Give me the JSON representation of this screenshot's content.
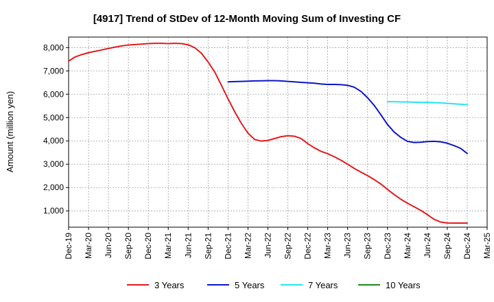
{
  "chart_data": {
    "type": "line",
    "title": "[4917]  Trend of StDev of 12-Month Moving Sum of Investing CF",
    "xlabel": "",
    "ylabel": "Amount (million yen)",
    "ylim": [
      300,
      8450
    ],
    "y_ticks": [
      1000,
      2000,
      3000,
      4000,
      5000,
      6000,
      7000,
      8000
    ],
    "y_tick_labels": [
      "1,000",
      "2,000",
      "3,000",
      "4,000",
      "5,000",
      "6,000",
      "7,000",
      "8,000"
    ],
    "x_range": [
      "2019-12",
      "2025-03"
    ],
    "x_tick_labels": [
      "Dec-19",
      "Mar-20",
      "Jun-20",
      "Sep-20",
      "Dec-20",
      "Mar-21",
      "Jun-21",
      "Sep-21",
      "Dec-21",
      "Mar-22",
      "Jun-22",
      "Sep-22",
      "Dec-22",
      "Mar-23",
      "Jun-23",
      "Sep-23",
      "Dec-23",
      "Mar-24",
      "Jun-24",
      "Sep-24",
      "Dec-24",
      "Mar-25"
    ],
    "grid": "dashed",
    "legend_position": "bottom",
    "series": [
      {
        "name": "3 Years",
        "color": "#e31a1c",
        "points": [
          [
            "2019-12",
            7420
          ],
          [
            "2020-01",
            7600
          ],
          [
            "2020-02",
            7700
          ],
          [
            "2020-03",
            7780
          ],
          [
            "2020-04",
            7840
          ],
          [
            "2020-05",
            7900
          ],
          [
            "2020-06",
            7960
          ],
          [
            "2020-07",
            8020
          ],
          [
            "2020-08",
            8070
          ],
          [
            "2020-09",
            8110
          ],
          [
            "2020-10",
            8130
          ],
          [
            "2020-11",
            8150
          ],
          [
            "2020-12",
            8170
          ],
          [
            "2021-01",
            8180
          ],
          [
            "2021-02",
            8180
          ],
          [
            "2021-03",
            8170
          ],
          [
            "2021-04",
            8180
          ],
          [
            "2021-05",
            8170
          ],
          [
            "2021-06",
            8120
          ],
          [
            "2021-07",
            7990
          ],
          [
            "2021-08",
            7750
          ],
          [
            "2021-09",
            7380
          ],
          [
            "2021-10",
            6950
          ],
          [
            "2021-11",
            6380
          ],
          [
            "2021-12",
            5800
          ],
          [
            "2022-01",
            5250
          ],
          [
            "2022-02",
            4750
          ],
          [
            "2022-03",
            4330
          ],
          [
            "2022-04",
            4060
          ],
          [
            "2022-05",
            3990
          ],
          [
            "2022-06",
            4020
          ],
          [
            "2022-07",
            4100
          ],
          [
            "2022-08",
            4180
          ],
          [
            "2022-09",
            4220
          ],
          [
            "2022-10",
            4200
          ],
          [
            "2022-11",
            4100
          ],
          [
            "2022-12",
            3880
          ],
          [
            "2023-01",
            3700
          ],
          [
            "2023-02",
            3550
          ],
          [
            "2023-03",
            3450
          ],
          [
            "2023-04",
            3320
          ],
          [
            "2023-05",
            3170
          ],
          [
            "2023-06",
            3000
          ],
          [
            "2023-07",
            2820
          ],
          [
            "2023-08",
            2660
          ],
          [
            "2023-09",
            2510
          ],
          [
            "2023-10",
            2340
          ],
          [
            "2023-11",
            2150
          ],
          [
            "2023-12",
            1920
          ],
          [
            "2024-01",
            1700
          ],
          [
            "2024-02",
            1500
          ],
          [
            "2024-03",
            1330
          ],
          [
            "2024-04",
            1180
          ],
          [
            "2024-05",
            1020
          ],
          [
            "2024-06",
            840
          ],
          [
            "2024-07",
            640
          ],
          [
            "2024-08",
            520
          ],
          [
            "2024-09",
            480
          ],
          [
            "2024-10",
            475
          ],
          [
            "2024-11",
            475
          ],
          [
            "2024-12",
            478
          ]
        ]
      },
      {
        "name": "5 Years",
        "color": "#0b14c8",
        "points": [
          [
            "2021-12",
            6530
          ],
          [
            "2022-01",
            6540
          ],
          [
            "2022-02",
            6550
          ],
          [
            "2022-03",
            6560
          ],
          [
            "2022-04",
            6570
          ],
          [
            "2022-05",
            6575
          ],
          [
            "2022-06",
            6580
          ],
          [
            "2022-07",
            6580
          ],
          [
            "2022-08",
            6570
          ],
          [
            "2022-09",
            6550
          ],
          [
            "2022-10",
            6530
          ],
          [
            "2022-11",
            6510
          ],
          [
            "2022-12",
            6490
          ],
          [
            "2023-01",
            6470
          ],
          [
            "2023-02",
            6440
          ],
          [
            "2023-03",
            6420
          ],
          [
            "2023-04",
            6420
          ],
          [
            "2023-05",
            6410
          ],
          [
            "2023-06",
            6380
          ],
          [
            "2023-07",
            6300
          ],
          [
            "2023-08",
            6120
          ],
          [
            "2023-09",
            5850
          ],
          [
            "2023-10",
            5520
          ],
          [
            "2023-11",
            5120
          ],
          [
            "2023-12",
            4700
          ],
          [
            "2024-01",
            4380
          ],
          [
            "2024-02",
            4150
          ],
          [
            "2024-03",
            3980
          ],
          [
            "2024-04",
            3930
          ],
          [
            "2024-05",
            3940
          ],
          [
            "2024-06",
            3970
          ],
          [
            "2024-07",
            3980
          ],
          [
            "2024-08",
            3960
          ],
          [
            "2024-09",
            3900
          ],
          [
            "2024-10",
            3800
          ],
          [
            "2024-11",
            3680
          ],
          [
            "2024-12",
            3460
          ]
        ]
      },
      {
        "name": "7 Years",
        "color": "#22e5f0",
        "points": [
          [
            "2023-12",
            5680
          ],
          [
            "2024-01",
            5680
          ],
          [
            "2024-02",
            5670
          ],
          [
            "2024-03",
            5670
          ],
          [
            "2024-04",
            5660
          ],
          [
            "2024-05",
            5650
          ],
          [
            "2024-06",
            5650
          ],
          [
            "2024-07",
            5640
          ],
          [
            "2024-08",
            5630
          ],
          [
            "2024-09",
            5610
          ],
          [
            "2024-10",
            5590
          ],
          [
            "2024-11",
            5570
          ],
          [
            "2024-12",
            5550
          ]
        ]
      },
      {
        "name": "10 Years",
        "color": "#1a8a1a",
        "points": []
      }
    ]
  }
}
